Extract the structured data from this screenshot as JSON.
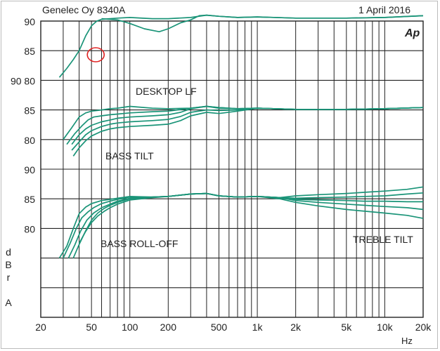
{
  "header": {
    "title": "Genelec Oy 8340A",
    "date": "1 April 2016",
    "logo": "Ap"
  },
  "chart_data": {
    "type": "line",
    "xscale": "log",
    "xlim": [
      20,
      20000
    ],
    "xlabel": "Hz",
    "x_ticks": [
      "20",
      "50",
      "100",
      "200",
      "500",
      "1k",
      "2k",
      "5k",
      "10k",
      "20k"
    ],
    "x_tick_values": [
      20,
      50,
      100,
      200,
      500,
      1000,
      2000,
      5000,
      10000,
      20000
    ],
    "y_ticks": [
      "90",
      "85",
      "90 80",
      "85",
      "80",
      "90",
      "85",
      "80"
    ],
    "ylabel_letters": [
      "d",
      "B",
      "r",
      "",
      "A"
    ],
    "annotations": [
      "DESKTOP LF",
      "BASS TILT",
      "BASS ROLL-OFF",
      "TREBLE TILT"
    ],
    "line_color": "#1a9478",
    "highlight_color": "#e02020",
    "groups": [
      {
        "label": "DESKTOP LF",
        "reference_85_row": 1,
        "series": [
          {
            "x": [
              28,
              32,
              36,
              40,
              45,
              50,
              55,
              60,
              70,
              80,
              100,
              150,
              200,
              300,
              400,
              500,
              700,
              1000,
              2000,
              5000,
              10000,
              20000
            ],
            "y": [
              80.5,
              82,
              83.5,
              85,
              87.5,
              89.2,
              90,
              90.3,
              90.4,
              90.5,
              90.6,
              90.4,
              90.4,
              90.6,
              91,
              90.8,
              90.6,
              90.7,
              90.5,
              90.5,
              90.6,
              90.9
            ]
          },
          {
            "x": [
              60,
              80,
              100,
              130,
              170,
              200,
              250,
              300,
              350,
              400,
              500,
              700,
              1000,
              2000,
              5000,
              10000,
              20000
            ],
            "y": [
              90.4,
              90.2,
              89.6,
              88.7,
              88.2,
              88.7,
              89.7,
              90.2,
              90.9,
              91,
              90.8,
              90.6,
              90.7,
              90.5,
              90.5,
              90.6,
              90.9
            ]
          }
        ]
      },
      {
        "label": "BASS TILT",
        "reference_85_row": 3,
        "series": [
          {
            "x": [
              30,
              35,
              40,
              45,
              50,
              60,
              70,
              80,
              100,
              150,
              200,
              300,
              400,
              500,
              700,
              1000,
              2000,
              5000,
              10000,
              20000
            ],
            "y": [
              80,
              82,
              83.8,
              84.5,
              84.8,
              85,
              85.2,
              85.3,
              85.6,
              85.3,
              85.2,
              85.3,
              85.6,
              85.4,
              85.2,
              85.3,
              85.1,
              85.1,
              85.2,
              85.4
            ]
          },
          {
            "x": [
              32,
              37,
              42,
              47,
              52,
              60,
              70,
              80,
              100,
              150,
              200,
              300,
              400,
              500,
              700,
              1000,
              2000,
              5000,
              10000,
              20000
            ],
            "y": [
              79.2,
              81,
              82.3,
              83.3,
              83.8,
              84,
              84.2,
              84.3,
              84.5,
              84.7,
              84.8,
              85.3,
              85.6,
              85.4,
              85.2,
              85.3,
              85.1,
              85.1,
              85.2,
              85.4
            ]
          },
          {
            "x": [
              35,
              40,
              45,
              50,
              60,
              70,
              80,
              100,
              150,
              200,
              250,
              300,
              400,
              500,
              700,
              1000,
              2000,
              5000,
              10000,
              20000
            ],
            "y": [
              79.2,
              80.8,
              81.8,
              82.4,
              83,
              83.3,
              83.6,
              83.8,
              84,
              84.2,
              84.6,
              85.2,
              85.6,
              85.3,
              85.2,
              85.3,
              85.1,
              85.1,
              85.2,
              85.4
            ]
          },
          {
            "x": [
              35,
              40,
              45,
              50,
              60,
              70,
              80,
              100,
              150,
              200,
              250,
              300,
              400,
              500,
              700,
              1000,
              2000,
              5000,
              10000,
              20000
            ],
            "y": [
              78.2,
              79.6,
              80.8,
              81.5,
              82.2,
              82.6,
              82.8,
              83,
              83.2,
              83.4,
              83.9,
              84.6,
              85,
              84.9,
              85,
              85.3,
              85.1,
              85.1,
              85.2,
              85.4
            ]
          },
          {
            "x": [
              36,
              40,
              45,
              50,
              60,
              70,
              80,
              100,
              150,
              200,
              250,
              300,
              400,
              500,
              700,
              1000,
              2000,
              5000,
              10000,
              20000
            ],
            "y": [
              77.2,
              78.6,
              79.8,
              80.6,
              81.4,
              81.8,
              82,
              82.2,
              82.4,
              82.6,
              83.2,
              84,
              84.6,
              84.4,
              84.8,
              85.3,
              85.1,
              85.1,
              85.2,
              85.4
            ]
          }
        ]
      },
      {
        "label": "BASS ROLL-OFF / TREBLE TILT",
        "reference_85_row": 6,
        "series": [
          {
            "x": [
              28,
              32,
              36,
              40,
              45,
              50,
              60,
              70,
              80,
              100,
              150,
              200,
              300,
              400,
              500,
              700,
              1000,
              1500,
              2000,
              3000,
              5000,
              7000,
              10000,
              15000,
              20000
            ],
            "y": [
              75,
              77,
              80,
              82.5,
              83.6,
              84.2,
              84.7,
              84.9,
              85.1,
              85.4,
              85.3,
              85.4,
              85.8,
              85.9,
              85.5,
              85.3,
              85.4,
              85.2,
              85.5,
              85.7,
              85.9,
              86.1,
              86.3,
              86.6,
              87
            ]
          },
          {
            "x": [
              30,
              34,
              38,
              42,
              47,
              52,
              60,
              70,
              80,
              100,
              150,
              200,
              300,
              400,
              500,
              700,
              1000,
              1500,
              2000,
              3000,
              5000,
              7000,
              10000,
              15000,
              20000
            ],
            "y": [
              75,
              77.5,
              80,
              81.8,
              82.8,
              83.5,
              84.2,
              84.6,
              84.9,
              85.3,
              85.3,
              85.4,
              85.8,
              85.9,
              85.5,
              85.3,
              85.4,
              85.2,
              85.1,
              85.2,
              85.3,
              85.4,
              85.5,
              85.8,
              86
            ]
          },
          {
            "x": [
              33,
              37,
              41,
              46,
              52,
              60,
              70,
              80,
              100,
              150,
              200,
              300,
              400,
              500,
              700,
              1000,
              1500,
              2000,
              3000,
              5000,
              7000,
              10000,
              15000,
              20000
            ],
            "y": [
              75,
              77.2,
              79.5,
              81.4,
              82.6,
              83.5,
              84.1,
              84.6,
              85.1,
              85.3,
              85.4,
              85.8,
              85.9,
              85.5,
              85.3,
              85.4,
              85.2,
              84.9,
              84.8,
              84.7,
              84.6,
              84.6,
              84.5,
              84.5
            ]
          },
          {
            "x": [
              36,
              40,
              45,
              50,
              56,
              63,
              70,
              80,
              100,
              150,
              200,
              300,
              400,
              500,
              700,
              1000,
              1500,
              2000,
              3000,
              5000,
              7000,
              10000,
              15000,
              20000
            ],
            "y": [
              75,
              77.3,
              79.6,
              81.4,
              82.6,
              83.4,
              83.9,
              84.4,
              85,
              85.3,
              85.4,
              85.8,
              85.9,
              85.5,
              85.3,
              85.4,
              85.2,
              84.7,
              84.4,
              84.1,
              83.9,
              83.7,
              83.5,
              83.2
            ]
          },
          {
            "x": [
              40,
              45,
              50,
              56,
              63,
              70,
              80,
              100,
              150,
              200,
              300,
              400,
              500,
              700,
              1000,
              1500,
              2000,
              3000,
              5000,
              7000,
              10000,
              15000,
              20000
            ],
            "y": [
              77.5,
              79.5,
              81,
              82.1,
              82.9,
              83.5,
              84.1,
              84.8,
              85.2,
              85.4,
              85.8,
              85.9,
              85.5,
              85.3,
              85.4,
              85,
              84.4,
              83.8,
              83.2,
              82.9,
              82.6,
              82.2,
              81.7
            ]
          }
        ]
      }
    ]
  }
}
